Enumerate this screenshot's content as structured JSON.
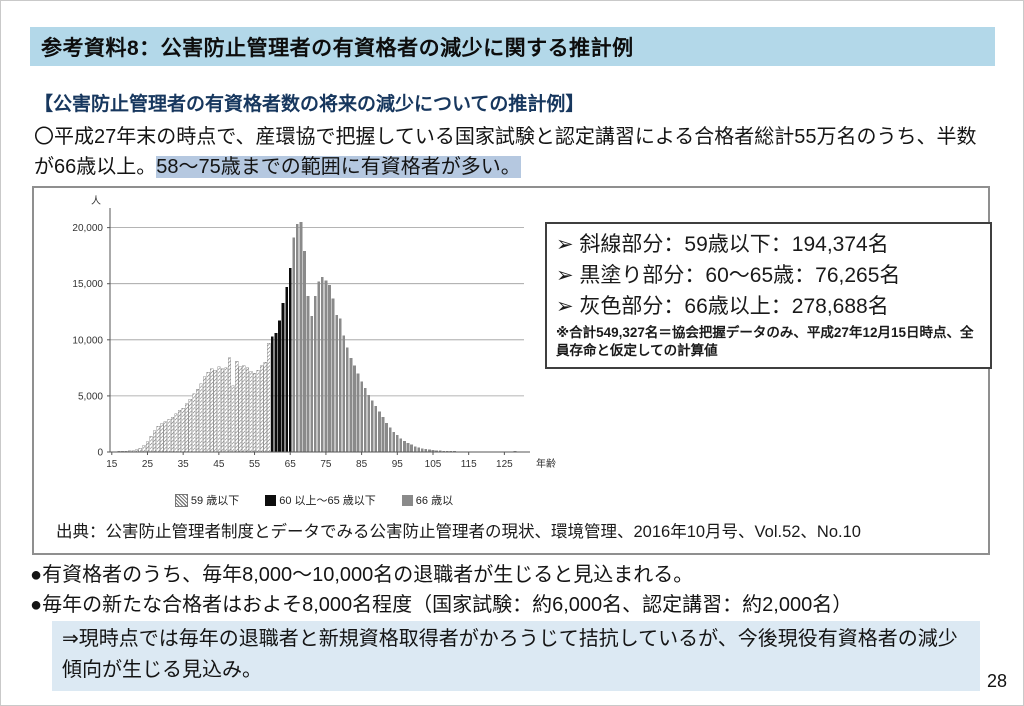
{
  "header": {
    "title": "参考資料8：公害防止管理者の有資格者の減少に関する推計例"
  },
  "subtitle": "【公害防止管理者の有資格者数の将来の減少についての推計例】",
  "intro": {
    "normal": "〇平成27年末の時点で、産環協で把握している国家試験と認定講習による合格者総計55万名のうち、半数が66歳以上。",
    "highlight": "58～75歳までの範囲に有資格者が多い。"
  },
  "figure": {
    "legend_box": {
      "items": [
        "➢ 斜線部分：59歳以下：194,374名",
        "➢ 黒塗り部分：60～65歳：76,265名",
        "➢ 灰色部分：66歳以上：278,688名"
      ],
      "note": "※合計549,327名＝協会把握データのみ、平成27年12月15日時点、全員存命と仮定しての計算値"
    },
    "series_legend": [
      {
        "label": "59 歳以下",
        "style": "hatched"
      },
      {
        "label": "60 以上～65 歳以下",
        "style": "black"
      },
      {
        "label": "66 歳以",
        "style": "gray"
      }
    ],
    "source": "出典：公害防止管理者制度とデータでみる公害防止管理者の現状、環境管理、2016年10月号、Vol.52、No.10"
  },
  "chart_data": {
    "type": "bar",
    "title": "",
    "ylabel": "人",
    "xlabel": "年齢",
    "x_start_age": 15,
    "x_ticks": [
      15,
      25,
      35,
      45,
      55,
      65,
      75,
      85,
      95,
      105,
      115,
      125
    ],
    "y_ticks": [
      0,
      5000,
      10000,
      15000,
      20000
    ],
    "ylim": [
      0,
      20500
    ],
    "groups": {
      "hatched_max_age": 59,
      "black_max_age": 65
    },
    "values": [
      30,
      40,
      50,
      60,
      80,
      100,
      130,
      200,
      350,
      600,
      900,
      1400,
      1900,
      2300,
      2500,
      2700,
      2900,
      3100,
      3400,
      3700,
      3900,
      4300,
      4700,
      5200,
      5600,
      6100,
      6700,
      7100,
      7400,
      7300,
      7600,
      7400,
      7500,
      8400,
      5900,
      8100,
      7600,
      7700,
      7500,
      7200,
      7000,
      7300,
      7700,
      8000,
      9700,
      10300,
      10600,
      11700,
      13300,
      14700,
      16400,
      19100,
      20300,
      20500,
      17900,
      13900,
      12100,
      13900,
      15200,
      15600,
      15300,
      14900,
      13700,
      12200,
      11900,
      10400,
      9300,
      8400,
      7700,
      7000,
      6300,
      5700,
      5100,
      4600,
      4100,
      3600,
      3100,
      2600,
      2200,
      1800,
      1500,
      1200,
      1000,
      800,
      650,
      500,
      400,
      320,
      260,
      210,
      170,
      140,
      120,
      100,
      90,
      80,
      70,
      60,
      60,
      50,
      50,
      50,
      40,
      40,
      40,
      40,
      30,
      30,
      30,
      30,
      60,
      30,
      30,
      80,
      60,
      40
    ]
  },
  "bullets": [
    "●有資格者のうち、毎年8,000～10,000名の退職者が生じると見込まれる。",
    "●毎年の新たな合格者はおよそ8,000名程度（国家試験：約6,000名、認定講習：約2,000名）"
  ],
  "conclusion": "⇒現時点では毎年の退職者と新規資格取得者がかろうじて拮抗しているが、今後現役有資格者の減少傾向が生じる見込み。",
  "page": {
    "number": "28"
  },
  "colors": {
    "title_bar_bg": "#b3d8e9",
    "subtitle_text": "#17375e",
    "highlight_bg": "#b5c8e0",
    "conclusion_bg": "#dce9f3",
    "bar_black": "#0d0d0d",
    "bar_gray": "#8a8a8a",
    "panel_border": "#8f8f8f"
  }
}
